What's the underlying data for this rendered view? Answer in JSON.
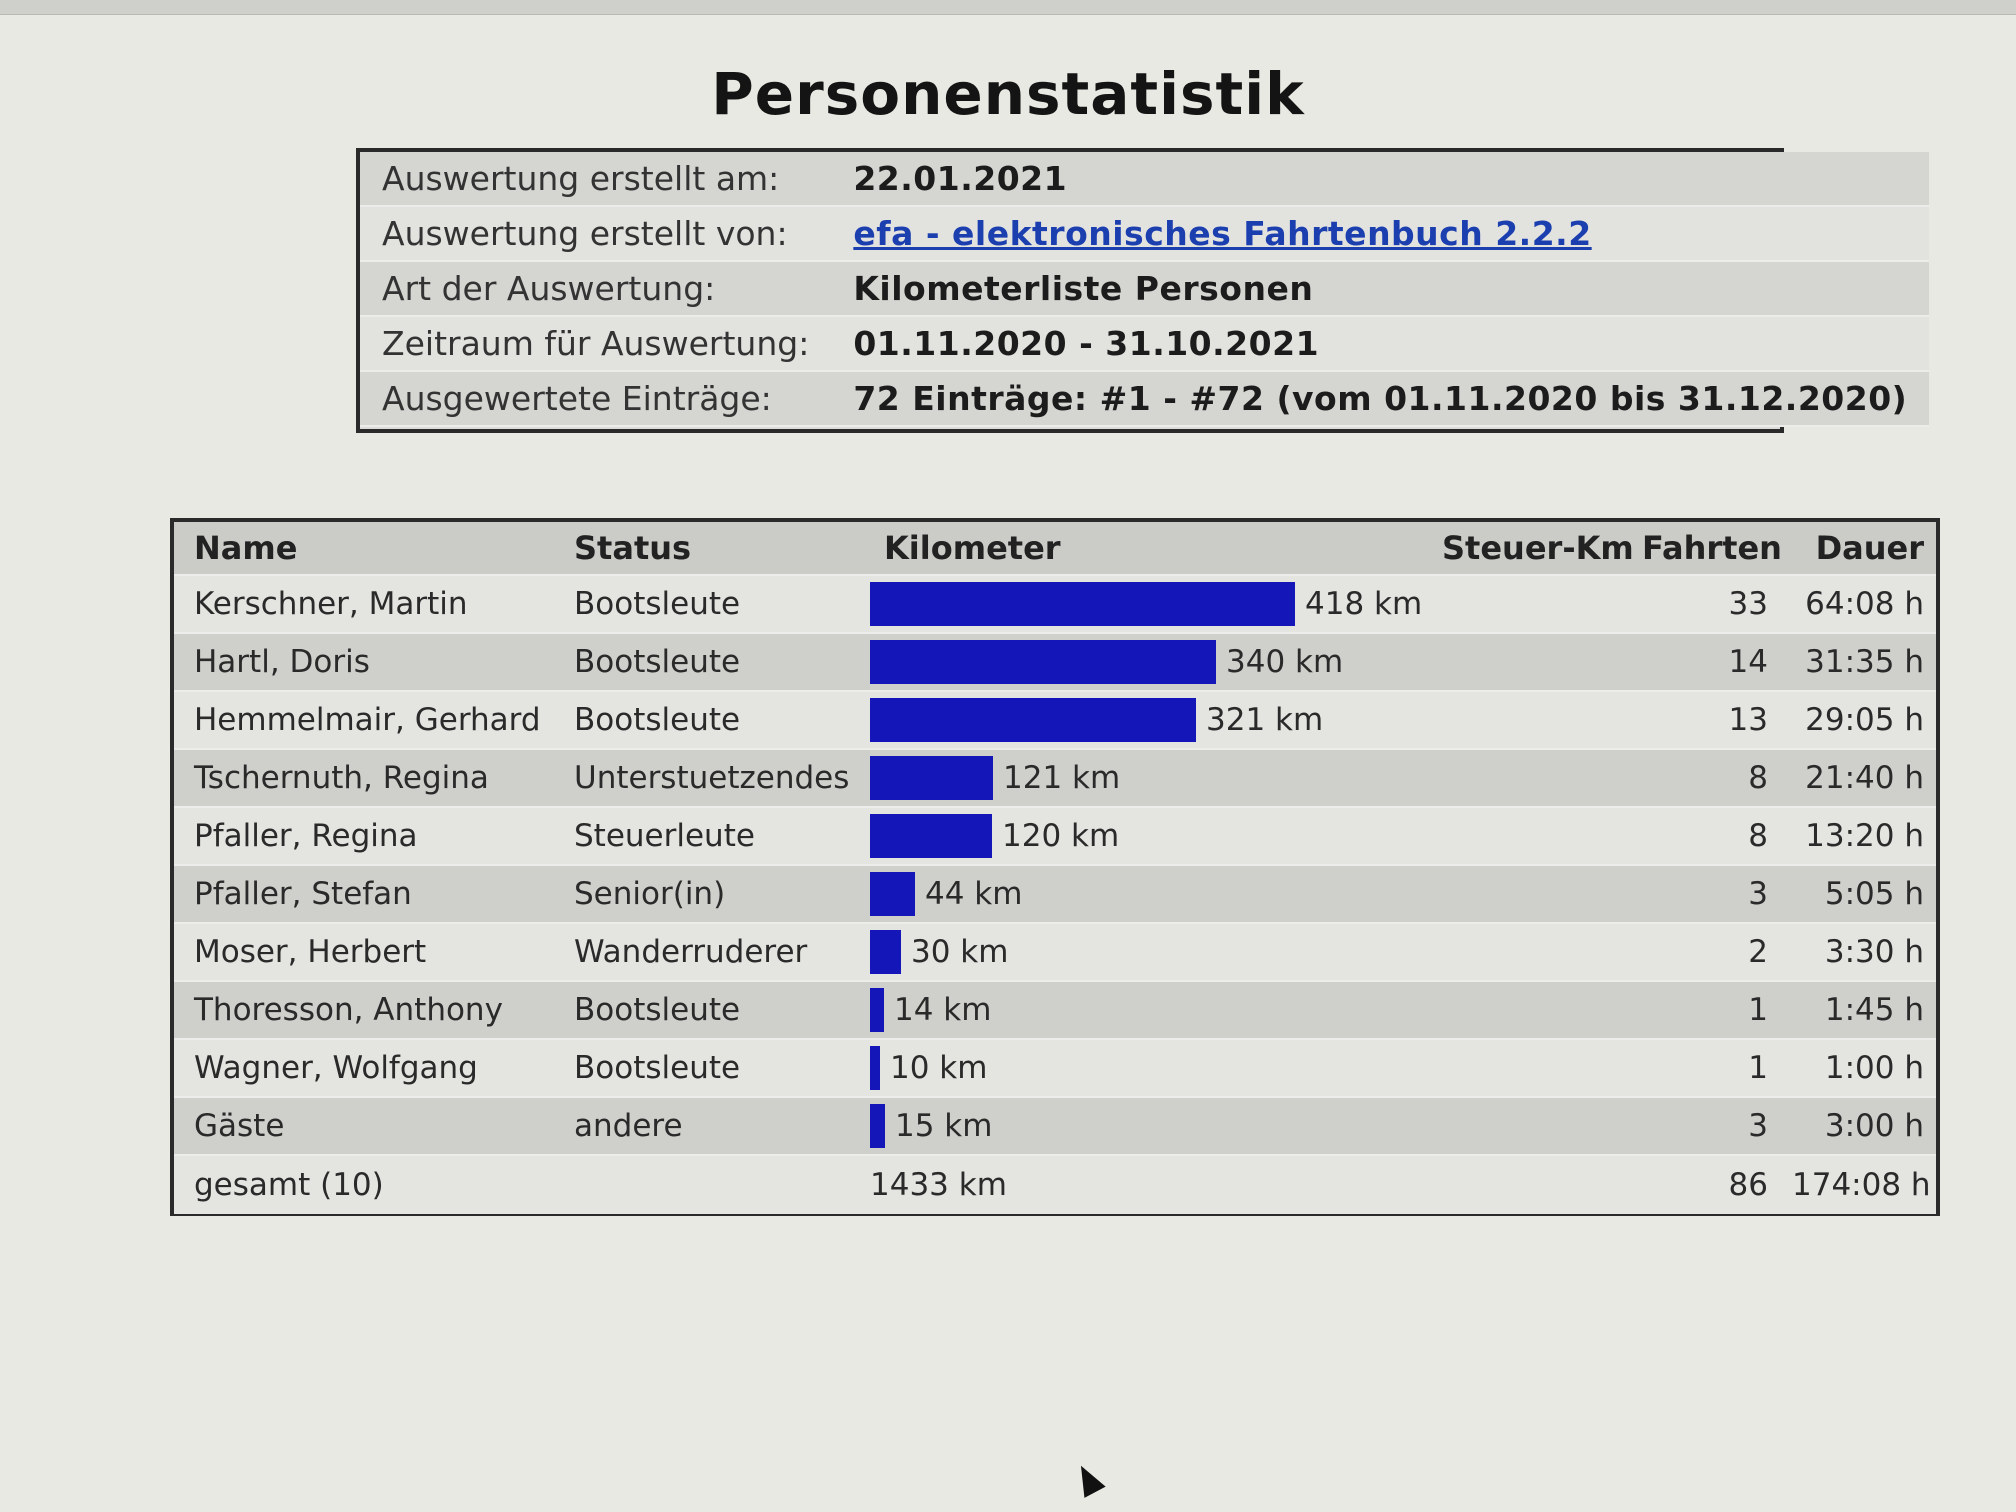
{
  "page": {
    "title": "Personenstatistik"
  },
  "info": [
    {
      "key": "Auswertung erstellt am:",
      "value": "22.01.2021",
      "link": false
    },
    {
      "key": "Auswertung erstellt von:",
      "value": "efa - elektronisches Fahrtenbuch 2.2.2",
      "link": true
    },
    {
      "key": "Art der Auswertung:",
      "value": "Kilometerliste Personen",
      "link": false
    },
    {
      "key": "Zeitraum für Auswertung:",
      "value": "01.11.2020 - 31.10.2021",
      "link": false
    },
    {
      "key": "Ausgewertete Einträge:",
      "value": "72 Einträge: #1 - #72 (vom 01.11.2020 bis 31.12.2020)",
      "link": false
    }
  ],
  "table": {
    "headers": {
      "name": "Name",
      "status": "Status",
      "km": "Kilometer",
      "steuer_km": "Steuer-Km",
      "fahrten": "Fahrten",
      "dauer": "Dauer"
    },
    "bar_color": "#1416b8",
    "rows": [
      {
        "name": "Kerschner, Martin",
        "status": "Bootsleute",
        "km": 418,
        "km_label": "418 km",
        "steuer_km": "",
        "fahrten": "33",
        "dauer": "64:08 h"
      },
      {
        "name": "Hartl, Doris",
        "status": "Bootsleute",
        "km": 340,
        "km_label": "340 km",
        "steuer_km": "",
        "fahrten": "14",
        "dauer": "31:35 h"
      },
      {
        "name": "Hemmelmair, Gerhard",
        "status": "Bootsleute",
        "km": 321,
        "km_label": "321 km",
        "steuer_km": "",
        "fahrten": "13",
        "dauer": "29:05 h"
      },
      {
        "name": "Tschernuth, Regina",
        "status": "Unterstuetzendes",
        "km": 121,
        "km_label": "121 km",
        "steuer_km": "",
        "fahrten": "8",
        "dauer": "21:40 h"
      },
      {
        "name": "Pfaller, Regina",
        "status": "Steuerleute",
        "km": 120,
        "km_label": "120 km",
        "steuer_km": "",
        "fahrten": "8",
        "dauer": "13:20 h"
      },
      {
        "name": "Pfaller, Stefan",
        "status": "Senior(in)",
        "km": 44,
        "km_label": "44 km",
        "steuer_km": "",
        "fahrten": "3",
        "dauer": "5:05 h"
      },
      {
        "name": "Moser, Herbert",
        "status": "Wanderruderer",
        "km": 30,
        "km_label": "30 km",
        "steuer_km": "",
        "fahrten": "2",
        "dauer": "3:30 h"
      },
      {
        "name": "Thoresson, Anthony",
        "status": "Bootsleute",
        "km": 14,
        "km_label": "14 km",
        "steuer_km": "",
        "fahrten": "1",
        "dauer": "1:45 h"
      },
      {
        "name": "Wagner, Wolfgang",
        "status": "Bootsleute",
        "km": 10,
        "km_label": "10 km",
        "steuer_km": "",
        "fahrten": "1",
        "dauer": "1:00 h"
      },
      {
        "name": "Gäste",
        "status": "andere",
        "km": 15,
        "km_label": "15 km",
        "steuer_km": "",
        "fahrten": "3",
        "dauer": "3:00 h"
      }
    ],
    "total": {
      "name": "gesamt (10)",
      "km_label": "1433 km",
      "fahrten": "86",
      "dauer": "174:08 h"
    }
  }
}
